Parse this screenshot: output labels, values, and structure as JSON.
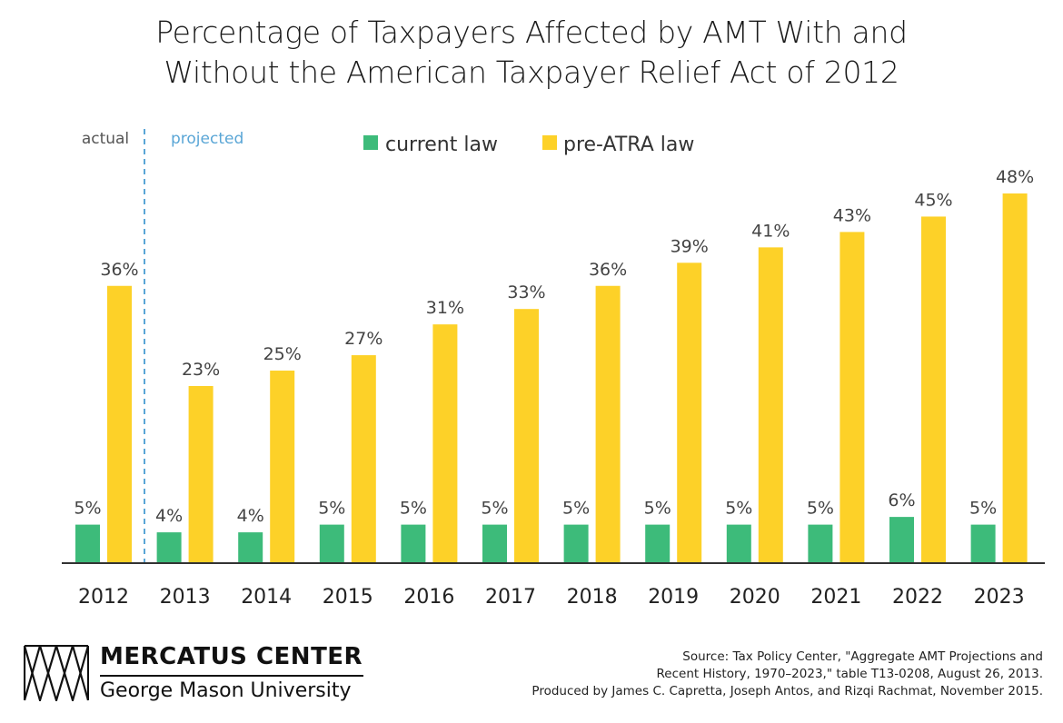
{
  "title_line1": "Percentage of Taxpayers Affected by AMT With and",
  "title_line2": "Without the American Taxpayer Relief Act of 2012",
  "period_labels": {
    "actual": "actual",
    "projected": "projected"
  },
  "colors": {
    "current": "#3dbb7a",
    "pre_atra": "#fdd128",
    "divider": "#5aa6d6",
    "axis": "#333333"
  },
  "chart_data": {
    "type": "bar",
    "title": "Percentage of Taxpayers Affected by AMT With and Without the American Taxpayer Relief Act of 2012",
    "categories": [
      "2012",
      "2013",
      "2014",
      "2015",
      "2016",
      "2017",
      "2018",
      "2019",
      "2020",
      "2021",
      "2022",
      "2023"
    ],
    "series": [
      {
        "name": "current law",
        "color": "#3dbb7a",
        "values": [
          5,
          4,
          4,
          5,
          5,
          5,
          5,
          5,
          5,
          5,
          6,
          5
        ],
        "labels": [
          "5%",
          "4%",
          "4%",
          "5%",
          "5%",
          "5%",
          "5%",
          "5%",
          "5%",
          "5%",
          "6%",
          "5%"
        ]
      },
      {
        "name": "pre-ATRA law",
        "color": "#fdd128",
        "values": [
          36,
          23,
          25,
          27,
          31,
          33,
          36,
          39,
          41,
          43,
          45,
          48
        ],
        "labels": [
          "36%",
          "23%",
          "25%",
          "27%",
          "31%",
          "33%",
          "36%",
          "39%",
          "41%",
          "43%",
          "45%",
          "48%"
        ]
      }
    ],
    "ylim": [
      0,
      50
    ],
    "grid": false,
    "legend": "top-center"
  },
  "logo": {
    "main": "MERCATUS CENTER",
    "sub": "George Mason University"
  },
  "source": [
    "Source: Tax Policy Center, \"Aggregate AMT Projections and",
    "Recent History, 1970–2023,\" table T13-0208, August 26, 2013.",
    "Produced by James C. Capretta, Joseph Antos, and Rizqi Rachmat, November 2015."
  ]
}
